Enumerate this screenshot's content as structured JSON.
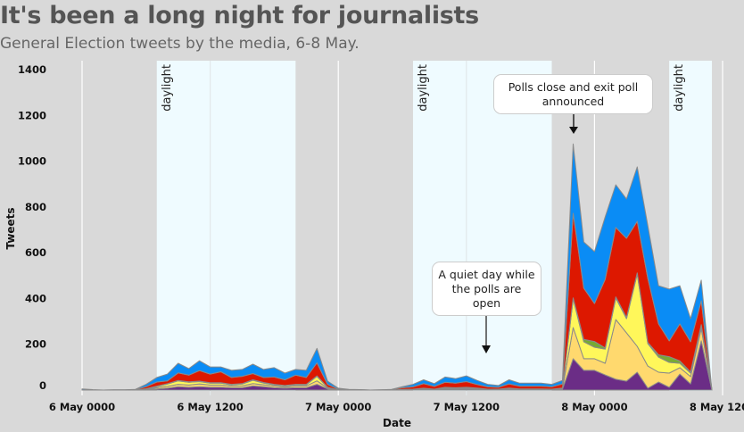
{
  "title": "It's been a long night for journalists",
  "subtitle": "General Election tweets by the media, 6-8 May.",
  "chart_data": {
    "type": "area",
    "stacked": true,
    "xlabel": "Date",
    "ylabel": "Tweets",
    "ylim": [
      0,
      1400
    ],
    "yticks": [
      "0",
      "200",
      "400",
      "600",
      "800",
      "1000",
      "1200",
      "1400"
    ],
    "xticks": [
      {
        "hour": 0,
        "label": "6 May 0000"
      },
      {
        "hour": 12,
        "label": "6 May 1200"
      },
      {
        "hour": 24,
        "label": "7 May 0000"
      },
      {
        "hour": 36,
        "label": "7 May 1200"
      },
      {
        "hour": 48,
        "label": "8 May 0000"
      },
      {
        "hour": 60,
        "label": "8 May 1200"
      }
    ],
    "x_unit": "hours since 6 May 0000",
    "x_start_hour": 0,
    "x_step_hours": 1,
    "daylight": [
      {
        "from": 7,
        "to": 20,
        "label": "daylight"
      },
      {
        "from": 31,
        "to": 44,
        "label": "daylight"
      },
      {
        "from": 55,
        "to": 59,
        "label": "daylight"
      }
    ],
    "series": [
      {
        "color": "#6b2d86",
        "values": [
          0,
          0,
          0,
          0,
          0,
          0,
          2,
          5,
          8,
          15,
          12,
          15,
          12,
          12,
          10,
          10,
          18,
          15,
          10,
          8,
          10,
          10,
          25,
          5,
          1,
          0,
          0,
          0,
          0,
          0,
          1,
          2,
          3,
          2,
          5,
          4,
          5,
          4,
          2,
          2,
          4,
          3,
          3,
          3,
          2,
          4,
          137,
          86,
          86,
          66,
          47,
          39,
          78,
          8,
          35,
          12,
          70,
          27,
          215,
          0
        ]
      },
      {
        "color": "#ffd96e",
        "values": [
          0,
          0,
          0,
          0,
          0,
          0,
          2,
          5,
          8,
          10,
          10,
          12,
          10,
          10,
          8,
          8,
          10,
          8,
          8,
          5,
          8,
          8,
          15,
          3,
          0,
          0,
          0,
          0,
          0,
          0,
          1,
          1,
          2,
          1,
          3,
          3,
          3,
          2,
          1,
          1,
          2,
          1,
          1,
          1,
          1,
          2,
          136,
          51,
          51,
          51,
          261,
          211,
          113,
          97,
          43,
          62,
          28,
          32,
          54,
          0
        ]
      },
      {
        "color": "#fff75a",
        "values": [
          0,
          0,
          0,
          0,
          0,
          0,
          0,
          5,
          10,
          15,
          12,
          10,
          8,
          8,
          5,
          8,
          15,
          8,
          5,
          5,
          5,
          5,
          20,
          3,
          0,
          0,
          0,
          0,
          0,
          0,
          1,
          1,
          2,
          1,
          3,
          2,
          3,
          2,
          1,
          1,
          2,
          1,
          1,
          1,
          1,
          2,
          125,
          74,
          50,
          62,
          94,
          62,
          316,
          98,
          66,
          47,
          19,
          15,
          12,
          0
        ]
      },
      {
        "color": "#77aa33",
        "values": [
          0,
          0,
          0,
          0,
          0,
          0,
          2,
          2,
          2,
          2,
          2,
          2,
          2,
          2,
          2,
          2,
          2,
          2,
          2,
          2,
          2,
          2,
          2,
          1,
          0,
          0,
          0,
          0,
          0,
          0,
          0,
          0,
          1,
          0,
          1,
          1,
          1,
          1,
          0,
          0,
          1,
          0,
          0,
          0,
          0,
          1,
          5,
          10,
          25,
          5,
          5,
          5,
          5,
          5,
          10,
          25,
          10,
          5,
          5,
          0
        ]
      },
      {
        "color": "#dd1800",
        "values": [
          0,
          0,
          0,
          1,
          1,
          2,
          9,
          18,
          12,
          33,
          29,
          46,
          38,
          48,
          30,
          32,
          27,
          22,
          32,
          25,
          40,
          30,
          57,
          13,
          3,
          2,
          2,
          0,
          1,
          2,
          7,
          10,
          20,
          12,
          22,
          20,
          25,
          15,
          10,
          8,
          18,
          12,
          12,
          12,
          10,
          18,
          369,
          224,
          166,
          300,
          303,
          346,
          225,
          280,
          135,
          69,
          162,
          132,
          104,
          0
        ]
      },
      {
        "color": "#0a8cf5",
        "values": [
          5,
          2,
          0,
          0,
          0,
          1,
          10,
          20,
          30,
          42,
          29,
          43,
          31,
          21,
          31,
          30,
          41,
          35,
          41,
          29,
          25,
          31,
          63,
          14,
          4,
          1,
          0,
          0,
          0,
          1,
          5,
          11,
          17,
          12,
          23,
          20,
          25,
          18,
          11,
          8,
          18,
          13,
          13,
          13,
          11,
          15,
          303,
          202,
          227,
          273,
          187,
          172,
          238,
          230,
          167,
          226,
          167,
          101,
          90,
          0
        ]
      }
    ],
    "annotations": [
      {
        "text": "Polls close and exit poll announced",
        "hour": 46
      },
      {
        "text": "A quiet day while the polls are open",
        "hour": 38
      }
    ]
  }
}
